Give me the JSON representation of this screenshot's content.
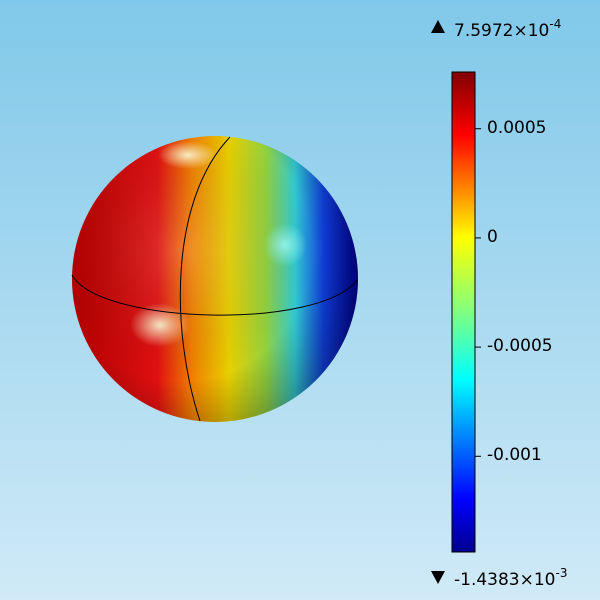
{
  "chart_data": {
    "type": "surface-3d",
    "object": "sphere",
    "colormap": "jet",
    "color_range": {
      "min": -0.0014383,
      "max": 0.00075972
    },
    "colorbar": {
      "max_label": {
        "mantissa": "7.5972",
        "times": "×10",
        "exponent": "-4"
      },
      "min_label": {
        "mantissa": "-1.4383",
        "times": "×10",
        "exponent": "-3"
      },
      "ticks": [
        {
          "value": 0.0005,
          "label": "0.0005"
        },
        {
          "value": 0,
          "label": "0"
        },
        {
          "value": -0.0005,
          "label": "-0.0005"
        },
        {
          "value": -0.001,
          "label": "-0.001"
        }
      ]
    },
    "field_pattern": "high (red) on left hemisphere, low (blue) on right hemisphere"
  },
  "colors": {
    "background_top": "#80c8e9",
    "background_bottom": "#d0eaf7"
  },
  "icons": {
    "max": "triangle-up-icon",
    "min": "triangle-down-icon"
  }
}
